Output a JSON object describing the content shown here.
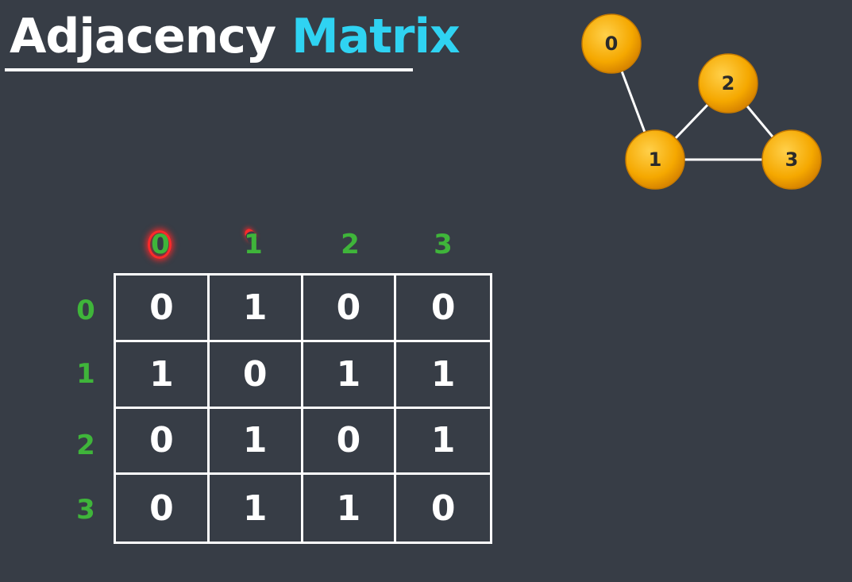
{
  "title": {
    "word1": "Adjacency",
    "word2": "Matrix"
  },
  "graph": {
    "nodes": [
      "0",
      "1",
      "2",
      "3"
    ],
    "edges": [
      [
        "0",
        "1"
      ],
      [
        "1",
        "2"
      ],
      [
        "1",
        "3"
      ],
      [
        "2",
        "3"
      ]
    ],
    "node_color": "#f5a800",
    "edge_color": "#ffffff"
  },
  "matrix": {
    "column_labels": [
      "0",
      "1",
      "2",
      "3"
    ],
    "row_labels": [
      "0",
      "1",
      "2",
      "3"
    ],
    "rows": [
      [
        "0",
        "1",
        "0",
        "0"
      ],
      [
        "1",
        "0",
        "1",
        "1"
      ],
      [
        "0",
        "1",
        "0",
        "1"
      ],
      [
        "0",
        "1",
        "1",
        "0"
      ]
    ],
    "label_color": "#3fb53a",
    "highlight_color": "#ff2a2a"
  }
}
